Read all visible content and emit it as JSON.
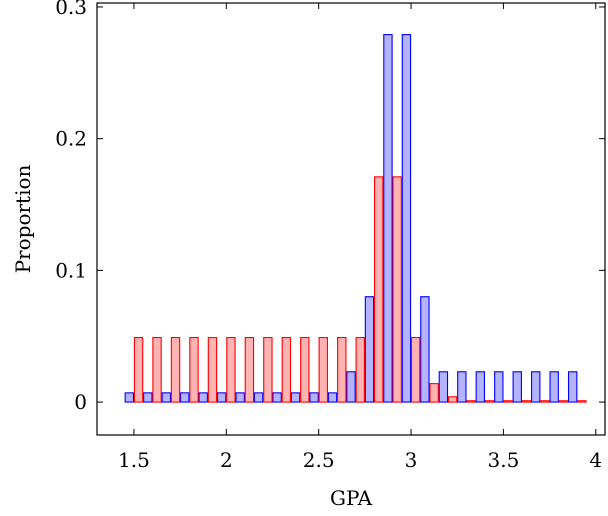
{
  "chart_data": {
    "type": "bar",
    "title": "",
    "xlabel": "GPA",
    "ylabel": "Proportion",
    "xlim": [
      1.3,
      4.05
    ],
    "ylim": [
      -0.025,
      0.303
    ],
    "xticks": [
      1.5,
      2,
      2.5,
      3,
      3.5,
      4
    ],
    "xtick_labels": [
      "1.5",
      "2",
      "2.5",
      "3",
      "3.5",
      "4"
    ],
    "yticks": [
      0,
      0.1,
      0.2,
      0.3
    ],
    "ytick_labels": [
      "0",
      "0.1",
      "0.2",
      "0.3"
    ],
    "grid": false,
    "bar_width": 0.045,
    "series": [
      {
        "color": "blue",
        "stroke": "#0000ff",
        "fill": "#b3b3ff",
        "offset": -0.025,
        "x": [
          1.5,
          1.6,
          1.7,
          1.8,
          1.9,
          2.0,
          2.1,
          2.2,
          2.3,
          2.4,
          2.5,
          2.6,
          2.7,
          2.8,
          2.9,
          3.0,
          3.1,
          3.2,
          3.3,
          3.4,
          3.5,
          3.6,
          3.7,
          3.8,
          3.9
        ],
        "values": [
          0.007,
          0.007,
          0.007,
          0.007,
          0.007,
          0.007,
          0.007,
          0.007,
          0.007,
          0.007,
          0.007,
          0.007,
          0.023,
          0.08,
          0.279,
          0.279,
          0.08,
          0.023,
          0.023,
          0.023,
          0.023,
          0.023,
          0.023,
          0.023,
          0.023
        ]
      },
      {
        "color": "red",
        "stroke": "#ff0000",
        "fill": "#ffb3b3",
        "offset": 0.025,
        "x": [
          1.5,
          1.6,
          1.7,
          1.8,
          1.9,
          2.0,
          2.1,
          2.2,
          2.3,
          2.4,
          2.5,
          2.6,
          2.7,
          2.8,
          2.9,
          3.0,
          3.1,
          3.2,
          3.3,
          3.4,
          3.5,
          3.6,
          3.7,
          3.8,
          3.9
        ],
        "values": [
          0.049,
          0.049,
          0.049,
          0.049,
          0.049,
          0.049,
          0.049,
          0.049,
          0.049,
          0.049,
          0.049,
          0.049,
          0.049,
          0.171,
          0.171,
          0.049,
          0.014,
          0.004,
          0.001,
          0.001,
          0.001,
          0.001,
          0.001,
          0.001,
          0.001
        ]
      }
    ]
  }
}
